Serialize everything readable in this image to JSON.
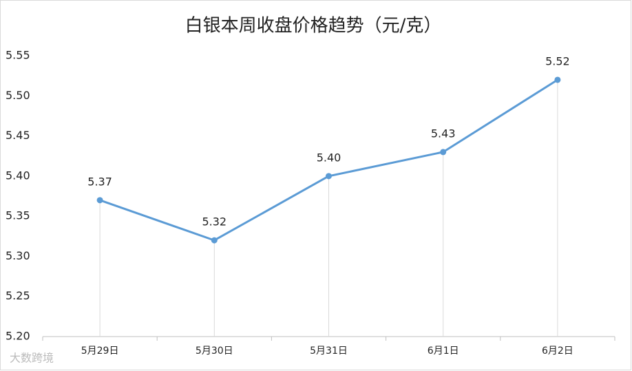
{
  "chart_data": {
    "type": "line",
    "title": "白银本周收盘价格趋势（元/克）",
    "categories": [
      "5月29日",
      "5月30日",
      "5月31日",
      "6月1日",
      "6月2日"
    ],
    "series": [
      {
        "name": "白银",
        "color": "#5b9bd5",
        "values": [
          5.37,
          5.32,
          5.4,
          5.43,
          5.52
        ],
        "value_labels": [
          "5.37",
          "5.32",
          "5.40",
          "5.43",
          "5.52"
        ]
      }
    ],
    "ylim": [
      5.2,
      5.55
    ],
    "yticks": [
      {
        "value": 5.2,
        "label": "5.20"
      },
      {
        "value": 5.25,
        "label": "5.25"
      },
      {
        "value": 5.3,
        "label": "5.30"
      },
      {
        "value": 5.35,
        "label": "5.35"
      },
      {
        "value": 5.4,
        "label": "5.40"
      },
      {
        "value": 5.45,
        "label": "5.45"
      },
      {
        "value": 5.5,
        "label": "5.50"
      },
      {
        "value": 5.55,
        "label": "5.55"
      }
    ],
    "grid": false,
    "drop_lines": true,
    "watermark": "大数跨境"
  }
}
